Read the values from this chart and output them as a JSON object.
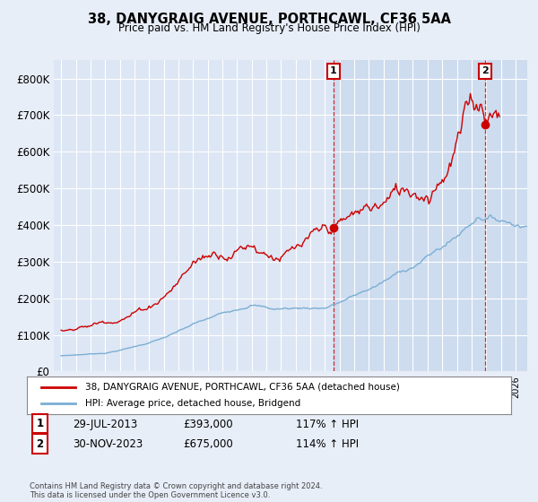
{
  "title": "38, DANYGRAIG AVENUE, PORTHCAWL, CF36 5AA",
  "subtitle": "Price paid vs. HM Land Registry's House Price Index (HPI)",
  "legend_line1": "38, DANYGRAIG AVENUE, PORTHCAWL, CF36 5AA (detached house)",
  "legend_line2": "HPI: Average price, detached house, Bridgend",
  "footnote": "Contains HM Land Registry data © Crown copyright and database right 2024.\nThis data is licensed under the Open Government Licence v3.0.",
  "row1_label": "1",
  "row1_date": "29-JUL-2013",
  "row1_price": "£393,000",
  "row1_pct": "117% ↑ HPI",
  "row2_label": "2",
  "row2_date": "30-NOV-2023",
  "row2_price": "£675,000",
  "row2_pct": "114% ↑ HPI",
  "price_line_color": "#cc0000",
  "hpi_line_color": "#7aafd4",
  "annotation_color": "#cc0000",
  "bg_color": "#e8eef8",
  "plot_bg_color": "#dde6f4",
  "grid_color": "#ffffff",
  "shade_color": "#c8d8ee",
  "ylim_min": 0,
  "ylim_max": 850000,
  "yticks": [
    0,
    100000,
    200000,
    300000,
    400000,
    500000,
    600000,
    700000,
    800000
  ],
  "ytick_labels": [
    "£0",
    "£100K",
    "£200K",
    "£300K",
    "£400K",
    "£500K",
    "£600K",
    "£700K",
    "£800K"
  ],
  "sale1_x": 2013.578,
  "sale1_y": 393000,
  "sale2_x": 2023.917,
  "sale2_y": 675000,
  "xmin": 1994.5,
  "xmax": 2026.8
}
